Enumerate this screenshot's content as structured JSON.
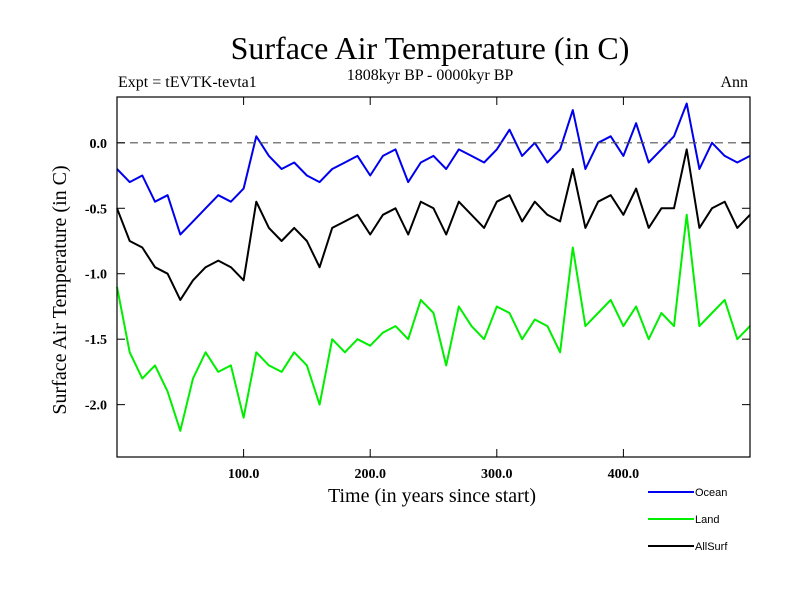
{
  "chart_data": {
    "type": "line",
    "title": "Surface Air Temperature (in C)",
    "subtitle_left": "Expt = tEVTK-tevta1",
    "subtitle_center": "1808kyr BP - 0000kyr BP",
    "subtitle_right": "Ann",
    "xlabel": "Time (in years since start)",
    "ylabel": "Surface Air Temperature (in C)",
    "xlim": [
      0,
      500
    ],
    "ylim": [
      -2.4,
      0.35
    ],
    "xticks": [
      100,
      200,
      300,
      400
    ],
    "xtick_labels": [
      "100.0",
      "200.0",
      "300.0",
      "400.0"
    ],
    "yticks": [
      0.0,
      -0.5,
      -1.0,
      -1.5,
      -2.0
    ],
    "ytick_labels": [
      "0.0",
      "-0.5",
      "-1.0",
      "-1.5",
      "-2.0"
    ],
    "reference_line": 0.0,
    "legend_position": "bottom-right",
    "series": [
      {
        "name": "Ocean",
        "color": "#0000ee",
        "x": [
          0,
          10,
          20,
          30,
          40,
          50,
          60,
          70,
          80,
          90,
          100,
          110,
          120,
          130,
          140,
          150,
          160,
          170,
          180,
          190,
          200,
          210,
          220,
          230,
          240,
          250,
          260,
          270,
          280,
          290,
          300,
          310,
          320,
          330,
          340,
          350,
          360,
          370,
          380,
          390,
          400,
          410,
          420,
          430,
          440,
          450,
          460,
          470,
          480,
          490,
          500
        ],
        "values": [
          -0.2,
          -0.3,
          -0.25,
          -0.45,
          -0.4,
          -0.7,
          -0.6,
          -0.5,
          -0.4,
          -0.45,
          -0.35,
          0.05,
          -0.1,
          -0.2,
          -0.15,
          -0.25,
          -0.3,
          -0.2,
          -0.15,
          -0.1,
          -0.25,
          -0.1,
          -0.05,
          -0.3,
          -0.15,
          -0.1,
          -0.2,
          -0.05,
          -0.1,
          -0.15,
          -0.05,
          0.1,
          -0.1,
          0.0,
          -0.15,
          -0.05,
          0.25,
          -0.2,
          0.0,
          0.05,
          -0.1,
          0.15,
          -0.15,
          -0.05,
          0.05,
          0.3,
          -0.2,
          0.0,
          -0.1,
          -0.15,
          -0.1
        ]
      },
      {
        "name": "Land",
        "color": "#00ee00",
        "x": [
          0,
          10,
          20,
          30,
          40,
          50,
          60,
          70,
          80,
          90,
          100,
          110,
          120,
          130,
          140,
          150,
          160,
          170,
          180,
          190,
          200,
          210,
          220,
          230,
          240,
          250,
          260,
          270,
          280,
          290,
          300,
          310,
          320,
          330,
          340,
          350,
          360,
          370,
          380,
          390,
          400,
          410,
          420,
          430,
          440,
          450,
          460,
          470,
          480,
          490,
          500
        ],
        "values": [
          -1.1,
          -1.6,
          -1.8,
          -1.7,
          -1.9,
          -2.2,
          -1.8,
          -1.6,
          -1.75,
          -1.7,
          -2.1,
          -1.6,
          -1.7,
          -1.75,
          -1.6,
          -1.7,
          -2.0,
          -1.5,
          -1.6,
          -1.5,
          -1.55,
          -1.45,
          -1.4,
          -1.5,
          -1.2,
          -1.3,
          -1.7,
          -1.25,
          -1.4,
          -1.5,
          -1.25,
          -1.3,
          -1.5,
          -1.35,
          -1.4,
          -1.6,
          -0.8,
          -1.4,
          -1.3,
          -1.2,
          -1.4,
          -1.25,
          -1.5,
          -1.3,
          -1.4,
          -0.55,
          -1.4,
          -1.3,
          -1.2,
          -1.5,
          -1.4
        ]
      },
      {
        "name": "AllSurf",
        "color": "#000000",
        "x": [
          0,
          10,
          20,
          30,
          40,
          50,
          60,
          70,
          80,
          90,
          100,
          110,
          120,
          130,
          140,
          150,
          160,
          170,
          180,
          190,
          200,
          210,
          220,
          230,
          240,
          250,
          260,
          270,
          280,
          290,
          300,
          310,
          320,
          330,
          340,
          350,
          360,
          370,
          380,
          390,
          400,
          410,
          420,
          430,
          440,
          450,
          460,
          470,
          480,
          490,
          500
        ],
        "values": [
          -0.5,
          -0.75,
          -0.8,
          -0.95,
          -1.0,
          -1.2,
          -1.05,
          -0.95,
          -0.9,
          -0.95,
          -1.05,
          -0.45,
          -0.65,
          -0.75,
          -0.65,
          -0.75,
          -0.95,
          -0.65,
          -0.6,
          -0.55,
          -0.7,
          -0.55,
          -0.5,
          -0.7,
          -0.45,
          -0.5,
          -0.7,
          -0.45,
          -0.55,
          -0.65,
          -0.45,
          -0.4,
          -0.6,
          -0.45,
          -0.55,
          -0.6,
          -0.2,
          -0.65,
          -0.45,
          -0.4,
          -0.55,
          -0.35,
          -0.65,
          -0.5,
          -0.5,
          -0.05,
          -0.65,
          -0.5,
          -0.45,
          -0.65,
          -0.55
        ]
      }
    ]
  }
}
